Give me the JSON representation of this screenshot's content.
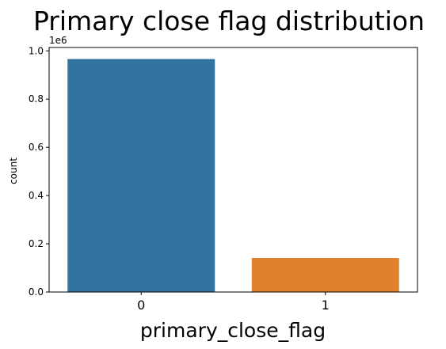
{
  "chart_data": {
    "type": "bar",
    "title": "Primary close flag distribution",
    "xlabel": "primary_close_flag",
    "ylabel": "count",
    "y_offset_label": "1e6",
    "categories": [
      "0",
      "1"
    ],
    "values": [
      966000,
      141000
    ],
    "colors": [
      "#3274a1",
      "#e1812c"
    ],
    "ylim": [
      0,
      1014000
    ],
    "yticks": [
      0,
      200000,
      400000,
      600000,
      800000,
      1000000
    ],
    "ytick_labels": [
      "0.0",
      "0.2",
      "0.4",
      "0.6",
      "0.8",
      "1.0"
    ],
    "grid": false
  }
}
